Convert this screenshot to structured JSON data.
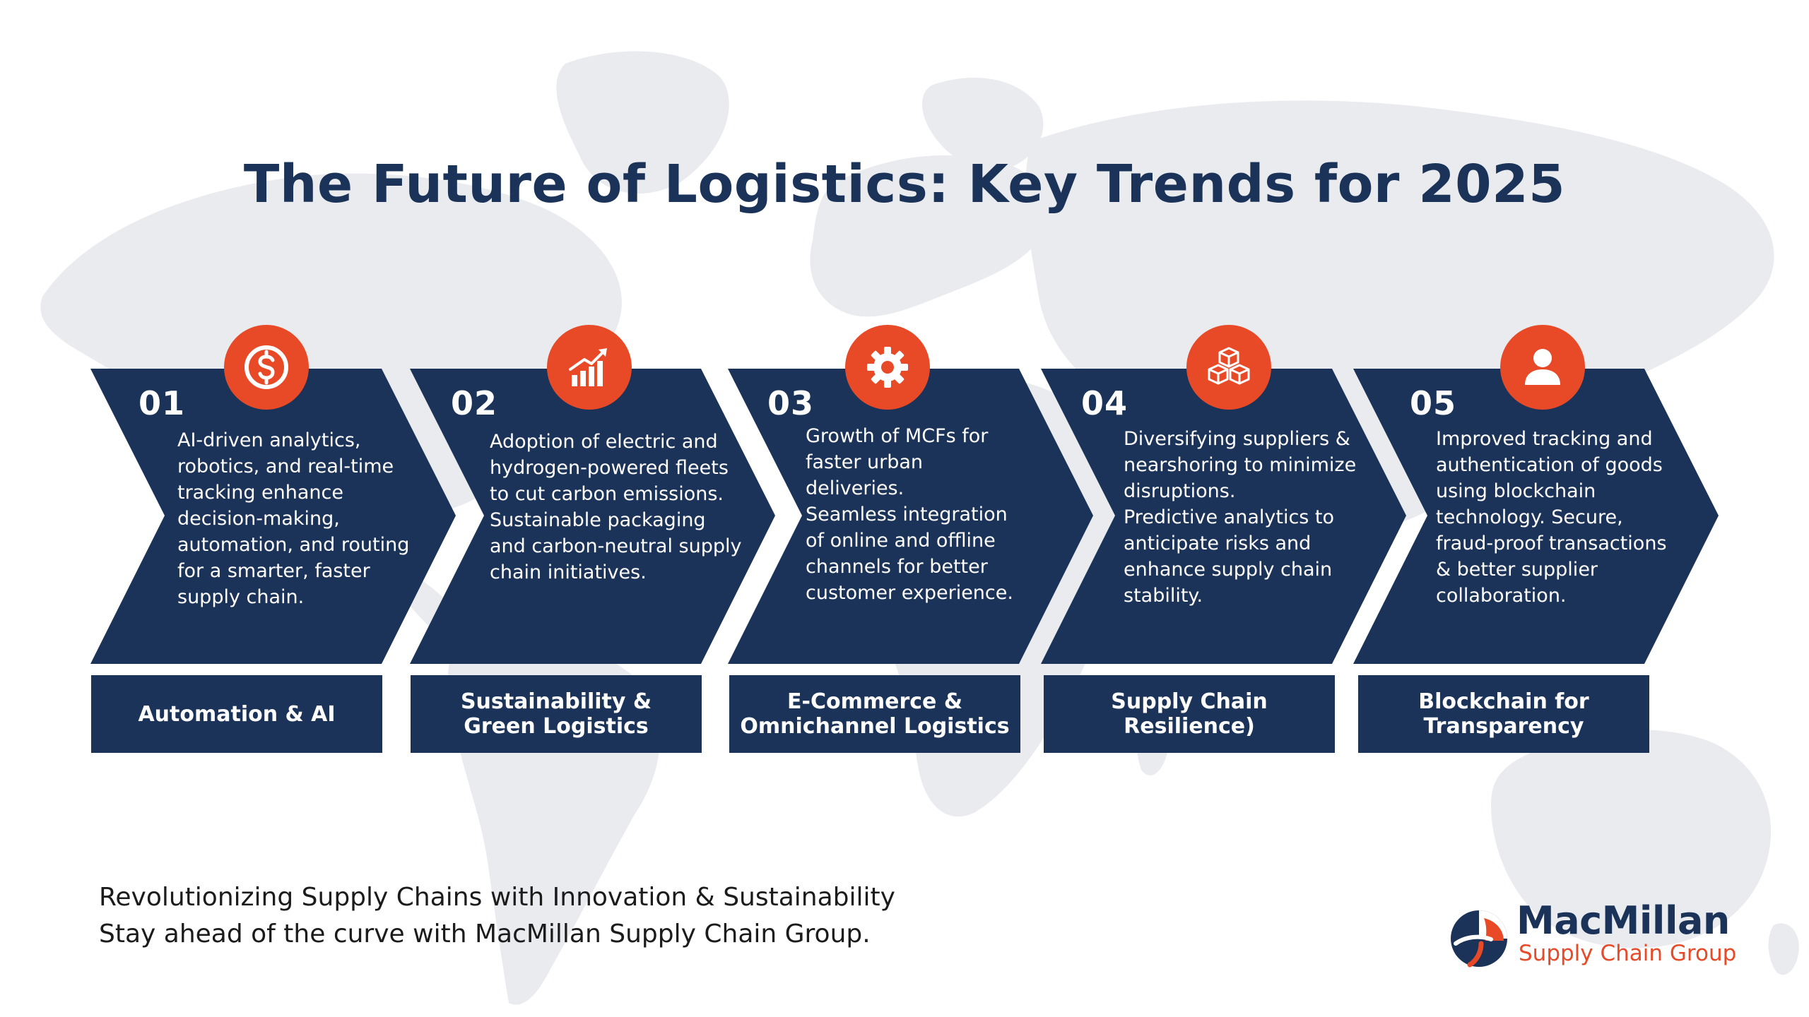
{
  "title": "The Future of Logistics: Key Trends for 2025",
  "colors": {
    "navy": "#1b3358",
    "accent": "#e84a27",
    "map": "#e9ebef"
  },
  "trends": [
    {
      "number": "01",
      "icon": "dollar-icon",
      "description": "AI-driven analytics,\nrobotics, and real-time\ntracking enhance\ndecision-making,\nautomation, and routing\nfor a smarter, faster\nsupply chain.",
      "label": "Automation & AI"
    },
    {
      "number": "02",
      "icon": "growth-chart-icon",
      "description": "Adoption of electric and\nhydrogen-powered fleets\nto cut carbon emissions.\nSustainable packaging\nand carbon-neutral supply\nchain initiatives.",
      "label": "Sustainability &\nGreen Logistics"
    },
    {
      "number": "03",
      "icon": "gear-icon",
      "description": "Growth of MCFs for\nfaster urban\ndeliveries.\nSeamless integration\nof online and offline\nchannels for better\ncustomer experience.",
      "label": "E-Commerce &\nOmnichannel Logistics"
    },
    {
      "number": "04",
      "icon": "boxes-icon",
      "description": "Diversifying suppliers &\nnearshoring to minimize\ndisruptions.\nPredictive analytics to\nanticipate risks and\nenhance supply chain\nstability.",
      "label": "Supply Chain\nResilience)"
    },
    {
      "number": "05",
      "icon": "user-icon",
      "description": "Improved tracking and\nauthentication of goods\nusing blockchain\ntechnology. Secure,\nfraud-proof transactions\n& better supplier\ncollaboration.",
      "label": "Blockchain for\nTransparency"
    }
  ],
  "footer": {
    "line1": "Revolutionizing Supply Chains with Innovation & Sustainability",
    "line2": "Stay ahead of the curve with MacMillan Supply Chain Group."
  },
  "logo": {
    "name": "MacMillan",
    "subtitle": "Supply Chain Group"
  }
}
